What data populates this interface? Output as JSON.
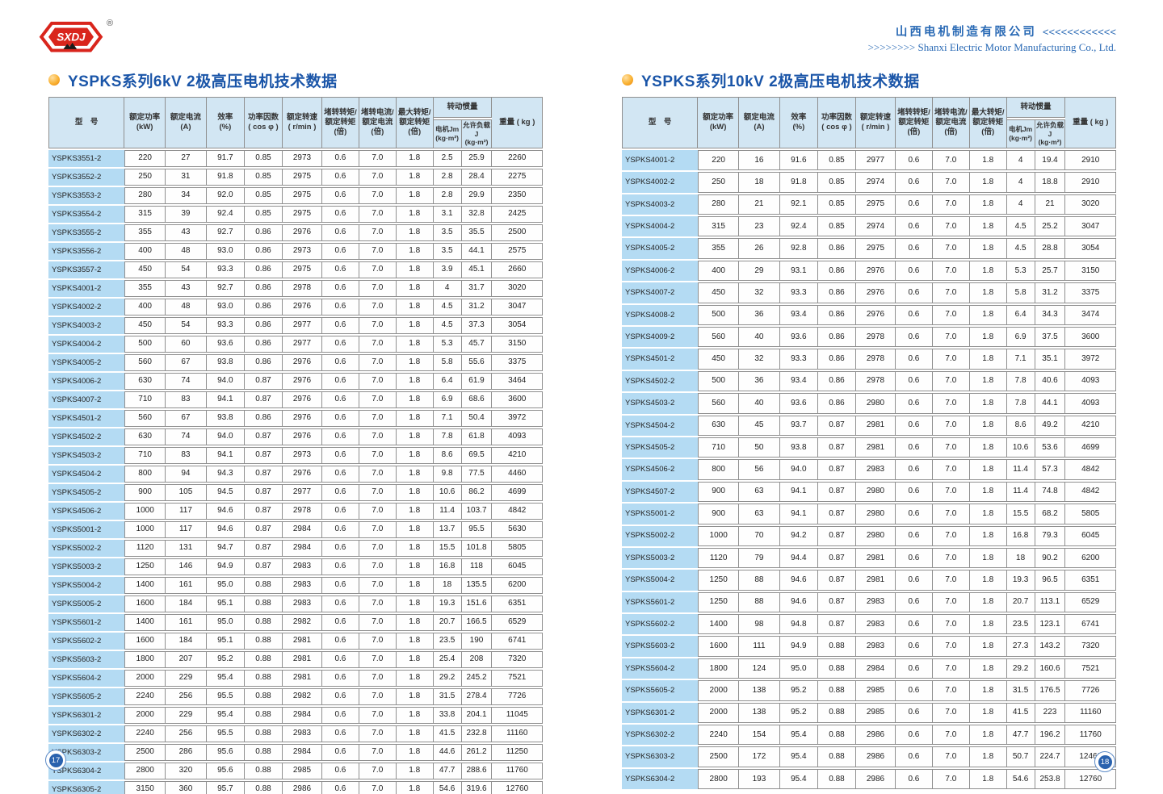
{
  "header": {
    "logo_text": "SXDJ",
    "registered_mark": "®",
    "company_cn": "山西电机制造有限公司",
    "company_cn_arrows": "<<<<<<<<<<<<",
    "company_en_arrows": ">>>>>>>>",
    "company_en": "Shanxi Electric Motor Manufacturing Co., Ltd."
  },
  "footer": {
    "left_page_number": "17",
    "right_page_number": "18"
  },
  "colors": {
    "title_blue": "#1a55a8",
    "company_blue": "#2a6ab5",
    "header_bg": "#d2e6f3",
    "model_cell_bg": "#b4dbf3",
    "accent_orange": "#f9b233",
    "logo_red": "#d9251c",
    "border_gray": "#8f8f8f",
    "page_circle_blue": "#2a62ae"
  },
  "table_headers": {
    "model": "型　号",
    "cols": [
      "额定功率\n(kW)",
      "额定电流\n(A)",
      "效率\n(%)",
      "功率因数\n( cos φ )",
      "额定转速\n( r/min )",
      "堵转转矩/\n额定转矩\n(倍)",
      "堵转电流/\n额定电流\n(倍)",
      "最大转矩/\n额定转矩\n(倍)"
    ],
    "inertia_group": "转动惯量",
    "inertia_sub": [
      "电机Jm\n(kg·m²)",
      "允许负载J\n(kg·m²)"
    ],
    "weight": "重量 ( kg )"
  },
  "tables": [
    {
      "title": "YSPKS系列6kV 2极高压电机技术数据",
      "rows": [
        [
          "YSPKS3551-2",
          "220",
          "27",
          "91.7",
          "0.85",
          "2973",
          "0.6",
          "7.0",
          "1.8",
          "2.5",
          "25.9",
          "2260"
        ],
        [
          "YSPKS3552-2",
          "250",
          "31",
          "91.8",
          "0.85",
          "2975",
          "0.6",
          "7.0",
          "1.8",
          "2.8",
          "28.4",
          "2275"
        ],
        [
          "YSPKS3553-2",
          "280",
          "34",
          "92.0",
          "0.85",
          "2975",
          "0.6",
          "7.0",
          "1.8",
          "2.8",
          "29.9",
          "2350"
        ],
        [
          "YSPKS3554-2",
          "315",
          "39",
          "92.4",
          "0.85",
          "2975",
          "0.6",
          "7.0",
          "1.8",
          "3.1",
          "32.8",
          "2425"
        ],
        [
          "YSPKS3555-2",
          "355",
          "43",
          "92.7",
          "0.86",
          "2976",
          "0.6",
          "7.0",
          "1.8",
          "3.5",
          "35.5",
          "2500"
        ],
        [
          "YSPKS3556-2",
          "400",
          "48",
          "93.0",
          "0.86",
          "2973",
          "0.6",
          "7.0",
          "1.8",
          "3.5",
          "44.1",
          "2575"
        ],
        [
          "YSPKS3557-2",
          "450",
          "54",
          "93.3",
          "0.86",
          "2975",
          "0.6",
          "7.0",
          "1.8",
          "3.9",
          "45.1",
          "2660"
        ],
        [
          "YSPKS4001-2",
          "355",
          "43",
          "92.7",
          "0.86",
          "2978",
          "0.6",
          "7.0",
          "1.8",
          "4",
          "31.7",
          "3020"
        ],
        [
          "YSPKS4002-2",
          "400",
          "48",
          "93.0",
          "0.86",
          "2976",
          "0.6",
          "7.0",
          "1.8",
          "4.5",
          "31.2",
          "3047"
        ],
        [
          "YSPKS4003-2",
          "450",
          "54",
          "93.3",
          "0.86",
          "2977",
          "0.6",
          "7.0",
          "1.8",
          "4.5",
          "37.3",
          "3054"
        ],
        [
          "YSPKS4004-2",
          "500",
          "60",
          "93.6",
          "0.86",
          "2977",
          "0.6",
          "7.0",
          "1.8",
          "5.3",
          "45.7",
          "3150"
        ],
        [
          "YSPKS4005-2",
          "560",
          "67",
          "93.8",
          "0.86",
          "2976",
          "0.6",
          "7.0",
          "1.8",
          "5.8",
          "55.6",
          "3375"
        ],
        [
          "YSPKS4006-2",
          "630",
          "74",
          "94.0",
          "0.87",
          "2976",
          "0.6",
          "7.0",
          "1.8",
          "6.4",
          "61.9",
          "3464"
        ],
        [
          "YSPKS4007-2",
          "710",
          "83",
          "94.1",
          "0.87",
          "2976",
          "0.6",
          "7.0",
          "1.8",
          "6.9",
          "68.6",
          "3600"
        ],
        [
          "YSPKS4501-2",
          "560",
          "67",
          "93.8",
          "0.86",
          "2976",
          "0.6",
          "7.0",
          "1.8",
          "7.1",
          "50.4",
          "3972"
        ],
        [
          "YSPKS4502-2",
          "630",
          "74",
          "94.0",
          "0.87",
          "2976",
          "0.6",
          "7.0",
          "1.8",
          "7.8",
          "61.8",
          "4093"
        ],
        [
          "YSPKS4503-2",
          "710",
          "83",
          "94.1",
          "0.87",
          "2973",
          "0.6",
          "7.0",
          "1.8",
          "8.6",
          "69.5",
          "4210"
        ],
        [
          "YSPKS4504-2",
          "800",
          "94",
          "94.3",
          "0.87",
          "2976",
          "0.6",
          "7.0",
          "1.8",
          "9.8",
          "77.5",
          "4460"
        ],
        [
          "YSPKS4505-2",
          "900",
          "105",
          "94.5",
          "0.87",
          "2977",
          "0.6",
          "7.0",
          "1.8",
          "10.6",
          "86.2",
          "4699"
        ],
        [
          "YSPKS4506-2",
          "1000",
          "117",
          "94.6",
          "0.87",
          "2978",
          "0.6",
          "7.0",
          "1.8",
          "11.4",
          "103.7",
          "4842"
        ],
        [
          "YSPKS5001-2",
          "1000",
          "117",
          "94.6",
          "0.87",
          "2984",
          "0.6",
          "7.0",
          "1.8",
          "13.7",
          "95.5",
          "5630"
        ],
        [
          "YSPKS5002-2",
          "1120",
          "131",
          "94.7",
          "0.87",
          "2984",
          "0.6",
          "7.0",
          "1.8",
          "15.5",
          "101.8",
          "5805"
        ],
        [
          "YSPKS5003-2",
          "1250",
          "146",
          "94.9",
          "0.87",
          "2983",
          "0.6",
          "7.0",
          "1.8",
          "16.8",
          "118",
          "6045"
        ],
        [
          "YSPKS5004-2",
          "1400",
          "161",
          "95.0",
          "0.88",
          "2983",
          "0.6",
          "7.0",
          "1.8",
          "18",
          "135.5",
          "6200"
        ],
        [
          "YSPKS5005-2",
          "1600",
          "184",
          "95.1",
          "0.88",
          "2983",
          "0.6",
          "7.0",
          "1.8",
          "19.3",
          "151.6",
          "6351"
        ],
        [
          "YSPKS5601-2",
          "1400",
          "161",
          "95.0",
          "0.88",
          "2982",
          "0.6",
          "7.0",
          "1.8",
          "20.7",
          "166.5",
          "6529"
        ],
        [
          "YSPKS5602-2",
          "1600",
          "184",
          "95.1",
          "0.88",
          "2981",
          "0.6",
          "7.0",
          "1.8",
          "23.5",
          "190",
          "6741"
        ],
        [
          "YSPKS5603-2",
          "1800",
          "207",
          "95.2",
          "0.88",
          "2981",
          "0.6",
          "7.0",
          "1.8",
          "25.4",
          "208",
          "7320"
        ],
        [
          "YSPKS5604-2",
          "2000",
          "229",
          "95.4",
          "0.88",
          "2981",
          "0.6",
          "7.0",
          "1.8",
          "29.2",
          "245.2",
          "7521"
        ],
        [
          "YSPKS5605-2",
          "2240",
          "256",
          "95.5",
          "0.88",
          "2982",
          "0.6",
          "7.0",
          "1.8",
          "31.5",
          "278.4",
          "7726"
        ],
        [
          "YSPKS6301-2",
          "2000",
          "229",
          "95.4",
          "0.88",
          "2984",
          "0.6",
          "7.0",
          "1.8",
          "33.8",
          "204.1",
          "11045"
        ],
        [
          "YSPKS6302-2",
          "2240",
          "256",
          "95.5",
          "0.88",
          "2983",
          "0.6",
          "7.0",
          "1.8",
          "41.5",
          "232.8",
          "11160"
        ],
        [
          "YSPKS6303-2",
          "2500",
          "286",
          "95.6",
          "0.88",
          "2984",
          "0.6",
          "7.0",
          "1.8",
          "44.6",
          "261.2",
          "11250"
        ],
        [
          "YSPKS6304-2",
          "2800",
          "320",
          "95.6",
          "0.88",
          "2985",
          "0.6",
          "7.0",
          "1.8",
          "47.7",
          "288.6",
          "11760"
        ],
        [
          "YSPKS6305-2",
          "3150",
          "360",
          "95.7",
          "0.88",
          "2986",
          "0.6",
          "7.0",
          "1.8",
          "54.6",
          "319.6",
          "12760"
        ]
      ]
    },
    {
      "title": "YSPKS系列10kV 2极高压电机技术数据",
      "rows": [
        [
          "YSPKS4001-2",
          "220",
          "16",
          "91.6",
          "0.85",
          "2977",
          "0.6",
          "7.0",
          "1.8",
          "4",
          "19.4",
          "2910"
        ],
        [
          "YSPKS4002-2",
          "250",
          "18",
          "91.8",
          "0.85",
          "2974",
          "0.6",
          "7.0",
          "1.8",
          "4",
          "18.8",
          "2910"
        ],
        [
          "YSPKS4003-2",
          "280",
          "21",
          "92.1",
          "0.85",
          "2975",
          "0.6",
          "7.0",
          "1.8",
          "4",
          "21",
          "3020"
        ],
        [
          "YSPKS4004-2",
          "315",
          "23",
          "92.4",
          "0.85",
          "2974",
          "0.6",
          "7.0",
          "1.8",
          "4.5",
          "25.2",
          "3047"
        ],
        [
          "YSPKS4005-2",
          "355",
          "26",
          "92.8",
          "0.86",
          "2975",
          "0.6",
          "7.0",
          "1.8",
          "4.5",
          "28.8",
          "3054"
        ],
        [
          "YSPKS4006-2",
          "400",
          "29",
          "93.1",
          "0.86",
          "2976",
          "0.6",
          "7.0",
          "1.8",
          "5.3",
          "25.7",
          "3150"
        ],
        [
          "YSPKS4007-2",
          "450",
          "32",
          "93.3",
          "0.86",
          "2976",
          "0.6",
          "7.0",
          "1.8",
          "5.8",
          "31.2",
          "3375"
        ],
        [
          "YSPKS4008-2",
          "500",
          "36",
          "93.4",
          "0.86",
          "2976",
          "0.6",
          "7.0",
          "1.8",
          "6.4",
          "34.3",
          "3474"
        ],
        [
          "YSPKS4009-2",
          "560",
          "40",
          "93.6",
          "0.86",
          "2978",
          "0.6",
          "7.0",
          "1.8",
          "6.9",
          "37.5",
          "3600"
        ],
        [
          "YSPKS4501-2",
          "450",
          "32",
          "93.3",
          "0.86",
          "2978",
          "0.6",
          "7.0",
          "1.8",
          "7.1",
          "35.1",
          "3972"
        ],
        [
          "YSPKS4502-2",
          "500",
          "36",
          "93.4",
          "0.86",
          "2978",
          "0.6",
          "7.0",
          "1.8",
          "7.8",
          "40.6",
          "4093"
        ],
        [
          "YSPKS4503-2",
          "560",
          "40",
          "93.6",
          "0.86",
          "2980",
          "0.6",
          "7.0",
          "1.8",
          "7.8",
          "44.1",
          "4093"
        ],
        [
          "YSPKS4504-2",
          "630",
          "45",
          "93.7",
          "0.87",
          "2981",
          "0.6",
          "7.0",
          "1.8",
          "8.6",
          "49.2",
          "4210"
        ],
        [
          "YSPKS4505-2",
          "710",
          "50",
          "93.8",
          "0.87",
          "2981",
          "0.6",
          "7.0",
          "1.8",
          "10.6",
          "53.6",
          "4699"
        ],
        [
          "YSPKS4506-2",
          "800",
          "56",
          "94.0",
          "0.87",
          "2983",
          "0.6",
          "7.0",
          "1.8",
          "11.4",
          "57.3",
          "4842"
        ],
        [
          "YSPKS4507-2",
          "900",
          "63",
          "94.1",
          "0.87",
          "2980",
          "0.6",
          "7.0",
          "1.8",
          "11.4",
          "74.8",
          "4842"
        ],
        [
          "YSPKS5001-2",
          "900",
          "63",
          "94.1",
          "0.87",
          "2980",
          "0.6",
          "7.0",
          "1.8",
          "15.5",
          "68.2",
          "5805"
        ],
        [
          "YSPKS5002-2",
          "1000",
          "70",
          "94.2",
          "0.87",
          "2980",
          "0.6",
          "7.0",
          "1.8",
          "16.8",
          "79.3",
          "6045"
        ],
        [
          "YSPKS5003-2",
          "1120",
          "79",
          "94.4",
          "0.87",
          "2981",
          "0.6",
          "7.0",
          "1.8",
          "18",
          "90.2",
          "6200"
        ],
        [
          "YSPKS5004-2",
          "1250",
          "88",
          "94.6",
          "0.87",
          "2981",
          "0.6",
          "7.0",
          "1.8",
          "19.3",
          "96.5",
          "6351"
        ],
        [
          "YSPKS5601-2",
          "1250",
          "88",
          "94.6",
          "0.87",
          "2983",
          "0.6",
          "7.0",
          "1.8",
          "20.7",
          "113.1",
          "6529"
        ],
        [
          "YSPKS5602-2",
          "1400",
          "98",
          "94.8",
          "0.87",
          "2983",
          "0.6",
          "7.0",
          "1.8",
          "23.5",
          "123.1",
          "6741"
        ],
        [
          "YSPKS5603-2",
          "1600",
          "111",
          "94.9",
          "0.88",
          "2983",
          "0.6",
          "7.0",
          "1.8",
          "27.3",
          "143.2",
          "7320"
        ],
        [
          "YSPKS5604-2",
          "1800",
          "124",
          "95.0",
          "0.88",
          "2984",
          "0.6",
          "7.0",
          "1.8",
          "29.2",
          "160.6",
          "7521"
        ],
        [
          "YSPKS5605-2",
          "2000",
          "138",
          "95.2",
          "0.88",
          "2985",
          "0.6",
          "7.0",
          "1.8",
          "31.5",
          "176.5",
          "7726"
        ],
        [
          "YSPKS6301-2",
          "2000",
          "138",
          "95.2",
          "0.88",
          "2985",
          "0.6",
          "7.0",
          "1.8",
          "41.5",
          "223",
          "11160"
        ],
        [
          "YSPKS6302-2",
          "2240",
          "154",
          "95.4",
          "0.88",
          "2986",
          "0.6",
          "7.0",
          "1.8",
          "47.7",
          "196.2",
          "11760"
        ],
        [
          "YSPKS6303-2",
          "2500",
          "172",
          "95.4",
          "0.88",
          "2986",
          "0.6",
          "7.0",
          "1.8",
          "50.7",
          "224.7",
          "12460"
        ],
        [
          "YSPKS6304-2",
          "2800",
          "193",
          "95.4",
          "0.88",
          "2986",
          "0.6",
          "7.0",
          "1.8",
          "54.6",
          "253.8",
          "12760"
        ]
      ]
    }
  ]
}
